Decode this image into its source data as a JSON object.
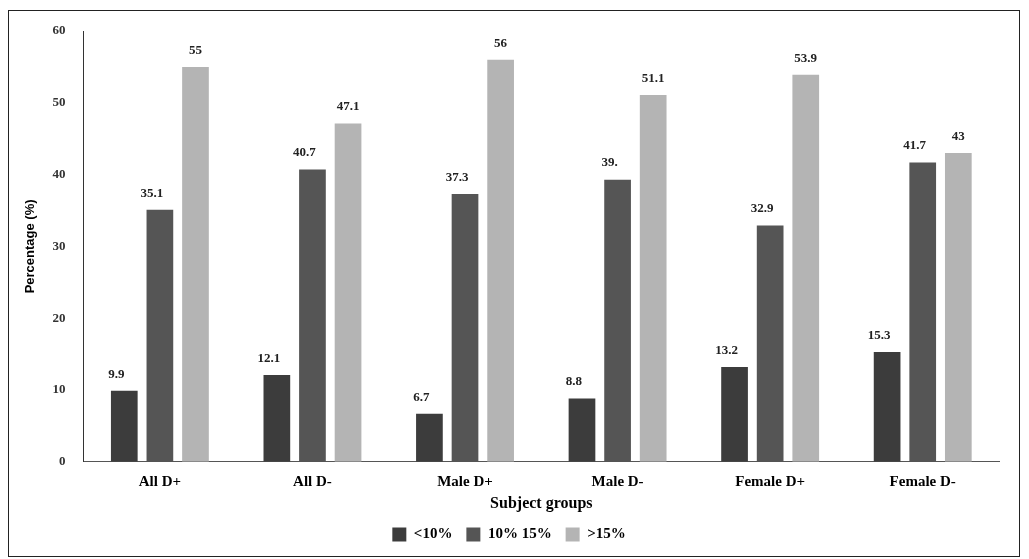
{
  "chart_data": {
    "type": "bar",
    "xlabel": "Subject groups",
    "ylabel": "Percentage (%)",
    "categories": [
      "All D+",
      "All D-",
      "Male D+",
      "Male D-",
      "Female D+",
      "Female D-"
    ],
    "series": [
      {
        "name": "<10%",
        "color": "#3c3c3c",
        "values": [
          9.9,
          12.1,
          6.7,
          8.8,
          13.2,
          15.3
        ],
        "value_labels": [
          "9.9",
          "12.1",
          "6.7",
          "8.8",
          "13.2",
          "15.3"
        ]
      },
      {
        "name": "10% 15%",
        "color": "#555555",
        "values": [
          35.1,
          40.7,
          37.3,
          39.3,
          32.9,
          41.7
        ],
        "value_labels": [
          "35.1",
          "40.7",
          "37.3",
          "39.",
          "32.9",
          "41.7"
        ]
      },
      {
        "name": ">15%",
        "color": "#b4b4b4",
        "values": [
          55,
          47.1,
          56,
          51.1,
          53.9,
          43
        ],
        "value_labels": [
          "55",
          "47.1",
          "56",
          "51.1",
          "53.9",
          "43"
        ]
      }
    ],
    "ylim": [
      0,
      60
    ],
    "yticks": [
      0,
      10,
      20,
      30,
      40,
      50,
      60
    ],
    "grid": false,
    "legend": "bottom"
  }
}
